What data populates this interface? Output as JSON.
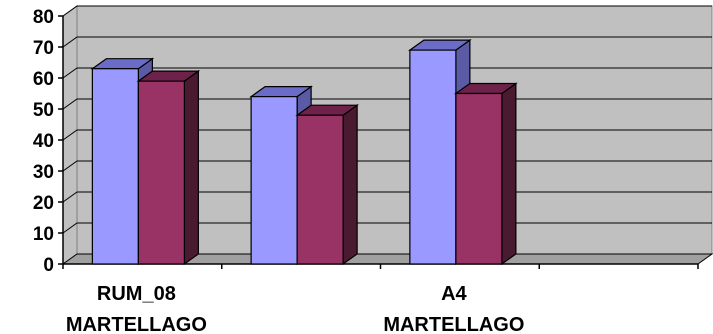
{
  "chart_data": {
    "type": "bar",
    "style": "3d-clustered-column",
    "categories": [
      [
        "RUM_08",
        "MARTELLAGO"
      ],
      [],
      [
        "A4",
        "MARTELLAGO"
      ],
      []
    ],
    "series": [
      {
        "color": "#9999ff",
        "side_color": "#5a5aa5",
        "top_color": "#6b6bc8",
        "values": [
          63,
          54,
          69,
          null
        ]
      },
      {
        "color": "#993366",
        "side_color": "#4a1a30",
        "top_color": "#6e2249",
        "values": [
          59,
          48,
          55,
          null
        ]
      }
    ],
    "ylim": [
      0,
      80
    ],
    "yticks": [
      0,
      10,
      20,
      30,
      40,
      50,
      60,
      70,
      80
    ],
    "grid": true,
    "wall_color": "#c0c0c0",
    "legend": "none"
  }
}
